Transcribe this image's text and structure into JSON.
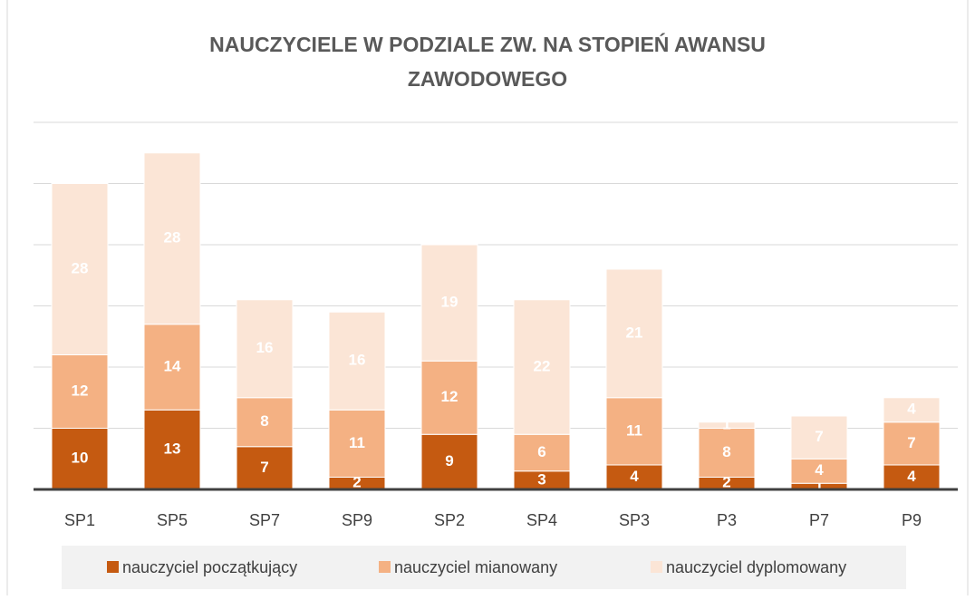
{
  "chart_data": {
    "type": "stacked_bar",
    "title": "NAUCZYCIELE W PODZIALE ZW. NA STOPIEŃ AWANSU ZAWODOWEGO",
    "categories": [
      "SP1",
      "SP5",
      "SP7",
      "SP9",
      "SP2",
      "SP4",
      "SP3",
      "P3",
      "P7",
      "P9"
    ],
    "series": [
      {
        "name": "nauczyciel początkujący",
        "color": "#c55a11",
        "values": [
          10,
          13,
          7,
          2,
          9,
          3,
          4,
          2,
          1,
          4
        ]
      },
      {
        "name": "nauczyciel mianowany",
        "color": "#f4b183",
        "values": [
          12,
          14,
          8,
          11,
          12,
          6,
          11,
          8,
          4,
          7
        ]
      },
      {
        "name": "nauczyciel dyplomowany",
        "color": "#fbe5d6",
        "values": [
          28,
          28,
          16,
          16,
          19,
          22,
          21,
          1,
          7,
          4
        ]
      }
    ],
    "ylim": [
      0,
      60
    ],
    "yticks": [
      0,
      10,
      20,
      30,
      40,
      50,
      60
    ],
    "grid": true,
    "legend": "bottom"
  }
}
